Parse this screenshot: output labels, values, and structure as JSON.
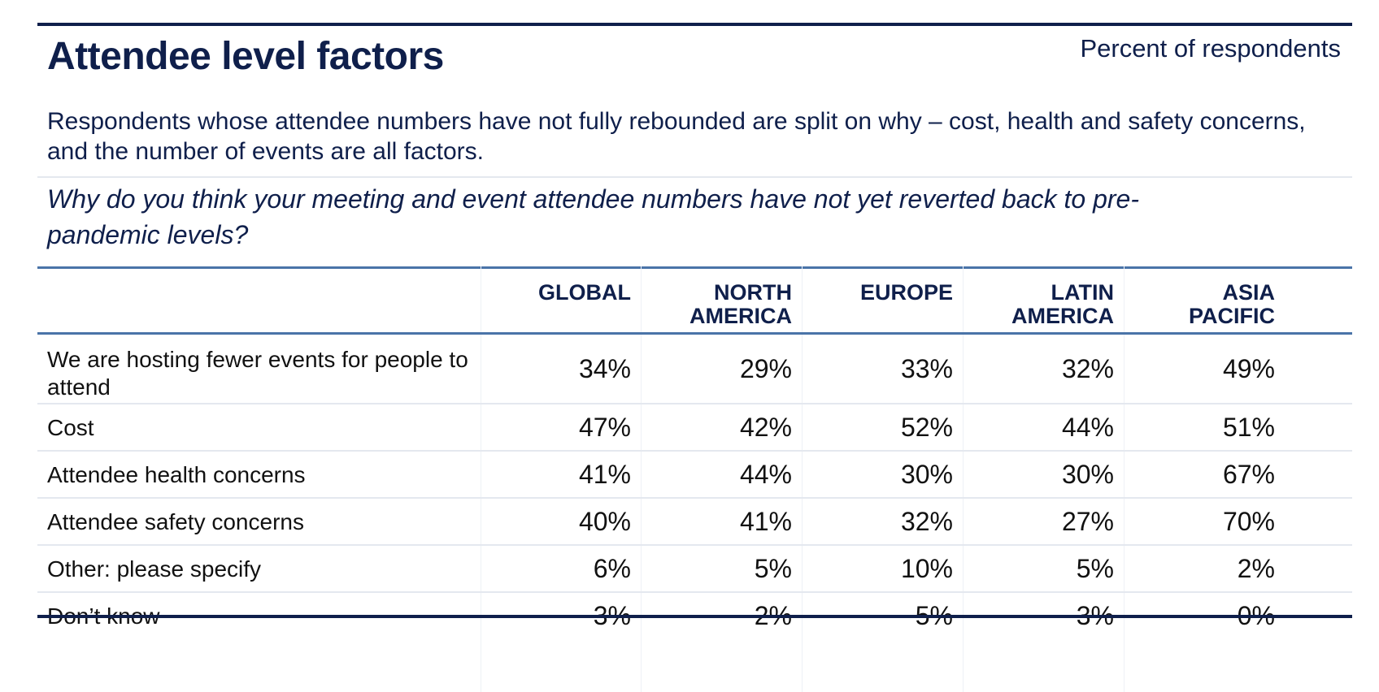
{
  "title": "Attendee level factors",
  "unit_label": "Percent of respondents",
  "description": "Respondents whose attendee numbers have not fully rebounded are split on why – cost, health and safety concerns, and the number of events are all factors.",
  "question": "Why do you think your meeting and event attendee numbers have not yet reverted back to pre-pandemic levels?",
  "table": {
    "columns": [
      {
        "line1": "GLOBAL",
        "line2": ""
      },
      {
        "line1": "NORTH",
        "line2": "AMERICA"
      },
      {
        "line1": "EUROPE",
        "line2": ""
      },
      {
        "line1": "LATIN",
        "line2": "AMERICA"
      },
      {
        "line1": "ASIA",
        "line2": "PACIFIC"
      }
    ],
    "rows": [
      {
        "label": "We are hosting fewer events for people to attend",
        "values": [
          "34%",
          "29%",
          "33%",
          "32%",
          "49%"
        ]
      },
      {
        "label": "Cost",
        "values": [
          "47%",
          "42%",
          "52%",
          "44%",
          "51%"
        ]
      },
      {
        "label": "Attendee health concerns",
        "values": [
          "41%",
          "44%",
          "30%",
          "30%",
          "67%"
        ]
      },
      {
        "label": "Attendee safety concerns",
        "values": [
          "40%",
          "41%",
          "32%",
          "27%",
          "70%"
        ]
      },
      {
        "label": "Other: please specify",
        "values": [
          "6%",
          "5%",
          "10%",
          "5%",
          "2%"
        ]
      },
      {
        "label": "Don’t know",
        "values": [
          "3%",
          "2%",
          "5%",
          "3%",
          "0%"
        ]
      }
    ]
  }
}
